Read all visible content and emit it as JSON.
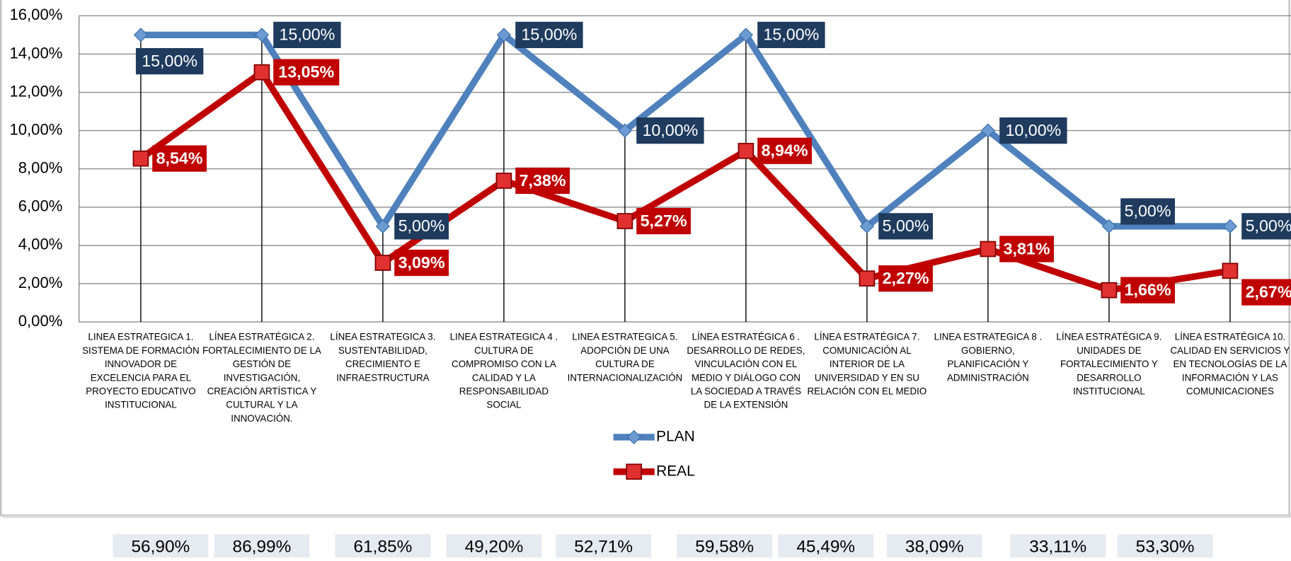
{
  "chart_data": {
    "type": "line",
    "categories": [
      [
        "LINEA ESTRATEGICA 1.",
        "SISTEMA DE FORMACIÓN",
        "INNOVADOR DE",
        "EXCELENCIA PARA EL",
        "PROYECTO EDUCATIVO",
        "INSTITUCIONAL"
      ],
      [
        "LÍNEA ESTRATÉGICA 2.",
        "FORTALECIMIENTO DE LA",
        "GESTIÓN DE",
        "INVESTIGACIÓN,",
        "CREACIÓN ARTÍSTICA Y",
        "CULTURAL Y LA",
        "INNOVACIÓN."
      ],
      [
        "LÍNEA ESTRATEGICA 3.",
        "SUSTENTABILIDAD,",
        "CRECIMIENTO E",
        "INFRAESTRUCTURA"
      ],
      [
        "LINEA ESTRATEGICA 4 .",
        "CULTURA DE",
        "COMPROMISO CON LA",
        "CALIDAD Y LA",
        "RESPONSABILIDAD",
        "SOCIAL"
      ],
      [
        "LINEA ESTRATEGICA 5.",
        "ADOPCIÓN DE UNA",
        "CULTURA DE",
        "INTERNACIONALIZACIÓN"
      ],
      [
        "LÍNEA ESTRATÉGICA 6 .",
        "DESARROLLO DE REDES,",
        "VINCULACIÓN CON EL",
        "MEDIO Y DIÁLOGO CON",
        "LA SOCIEDAD A TRAVÉS",
        "DE LA EXTENSIÓN"
      ],
      [
        "LÍNEA ESTRATÉGICA 7.",
        "COMUNICACIÓN  AL",
        "INTERIOR DE LA",
        "UNIVERSIDAD Y EN SU",
        "RELACIÓN CON EL MEDIO"
      ],
      [
        "LINEA ESTRATEGICA 8 .",
        "GOBIERNO,",
        "PLANIFICACIÓN Y",
        "ADMINISTRACIÓN"
      ],
      [
        "LÍNEA ESTRATÉGICA 9.",
        "UNIDADES DE",
        "FORTALECIMIENTO Y",
        "DESARROLLO",
        "INSTITUCIONAL"
      ],
      [
        "LÍNEA ESTRATÉGICA 10.",
        "CALIDAD EN SERVICIOS Y",
        "EN TECNOLOGÍAS DE LA",
        "INFORMACIÓN Y LAS",
        "COMUNICACIONES"
      ]
    ],
    "series": [
      {
        "name": "PLAN",
        "color": "#4f81bd",
        "label_color": "#1f3b5e",
        "values": [
          15,
          15,
          5,
          15,
          10,
          15,
          5,
          10,
          5,
          5
        ],
        "value_labels": [
          "15,00%",
          "15,00%",
          "5,00%",
          "15,00%",
          "10,00%",
          "15,00%",
          "5,00%",
          "10,00%",
          "5,00%",
          "5,00%"
        ]
      },
      {
        "name": "REAL",
        "color": "#c00000",
        "label_color": "#c00000",
        "values": [
          8.54,
          13.05,
          3.09,
          7.38,
          5.27,
          8.94,
          2.27,
          3.81,
          1.66,
          2.67
        ],
        "value_labels": [
          "8,54%",
          "13,05%",
          "3,09%",
          "7,38%",
          "5,27%",
          "8,94%",
          "2,27%",
          "3,81%",
          "1,66%",
          "2,67%"
        ]
      }
    ],
    "ylim": [
      0,
      16
    ],
    "yticks": [
      {
        "value": 0,
        "label": "0,00%"
      },
      {
        "value": 2,
        "label": "2,00%"
      },
      {
        "value": 4,
        "label": "4,00%"
      },
      {
        "value": 6,
        "label": "6,00%"
      },
      {
        "value": 8,
        "label": "8,00%"
      },
      {
        "value": 10,
        "label": "10,00%"
      },
      {
        "value": 12,
        "label": "12,00%"
      },
      {
        "value": 14,
        "label": "14,00%"
      },
      {
        "value": 16,
        "label": "16,00%"
      }
    ],
    "grid": true
  },
  "footer_labels": [
    "56,90%",
    "86,99%",
    "61,85%",
    "49,20%",
    "52,71%",
    "59,58%",
    "45,49%",
    "38,09%",
    "33,11%",
    "53,30%"
  ]
}
